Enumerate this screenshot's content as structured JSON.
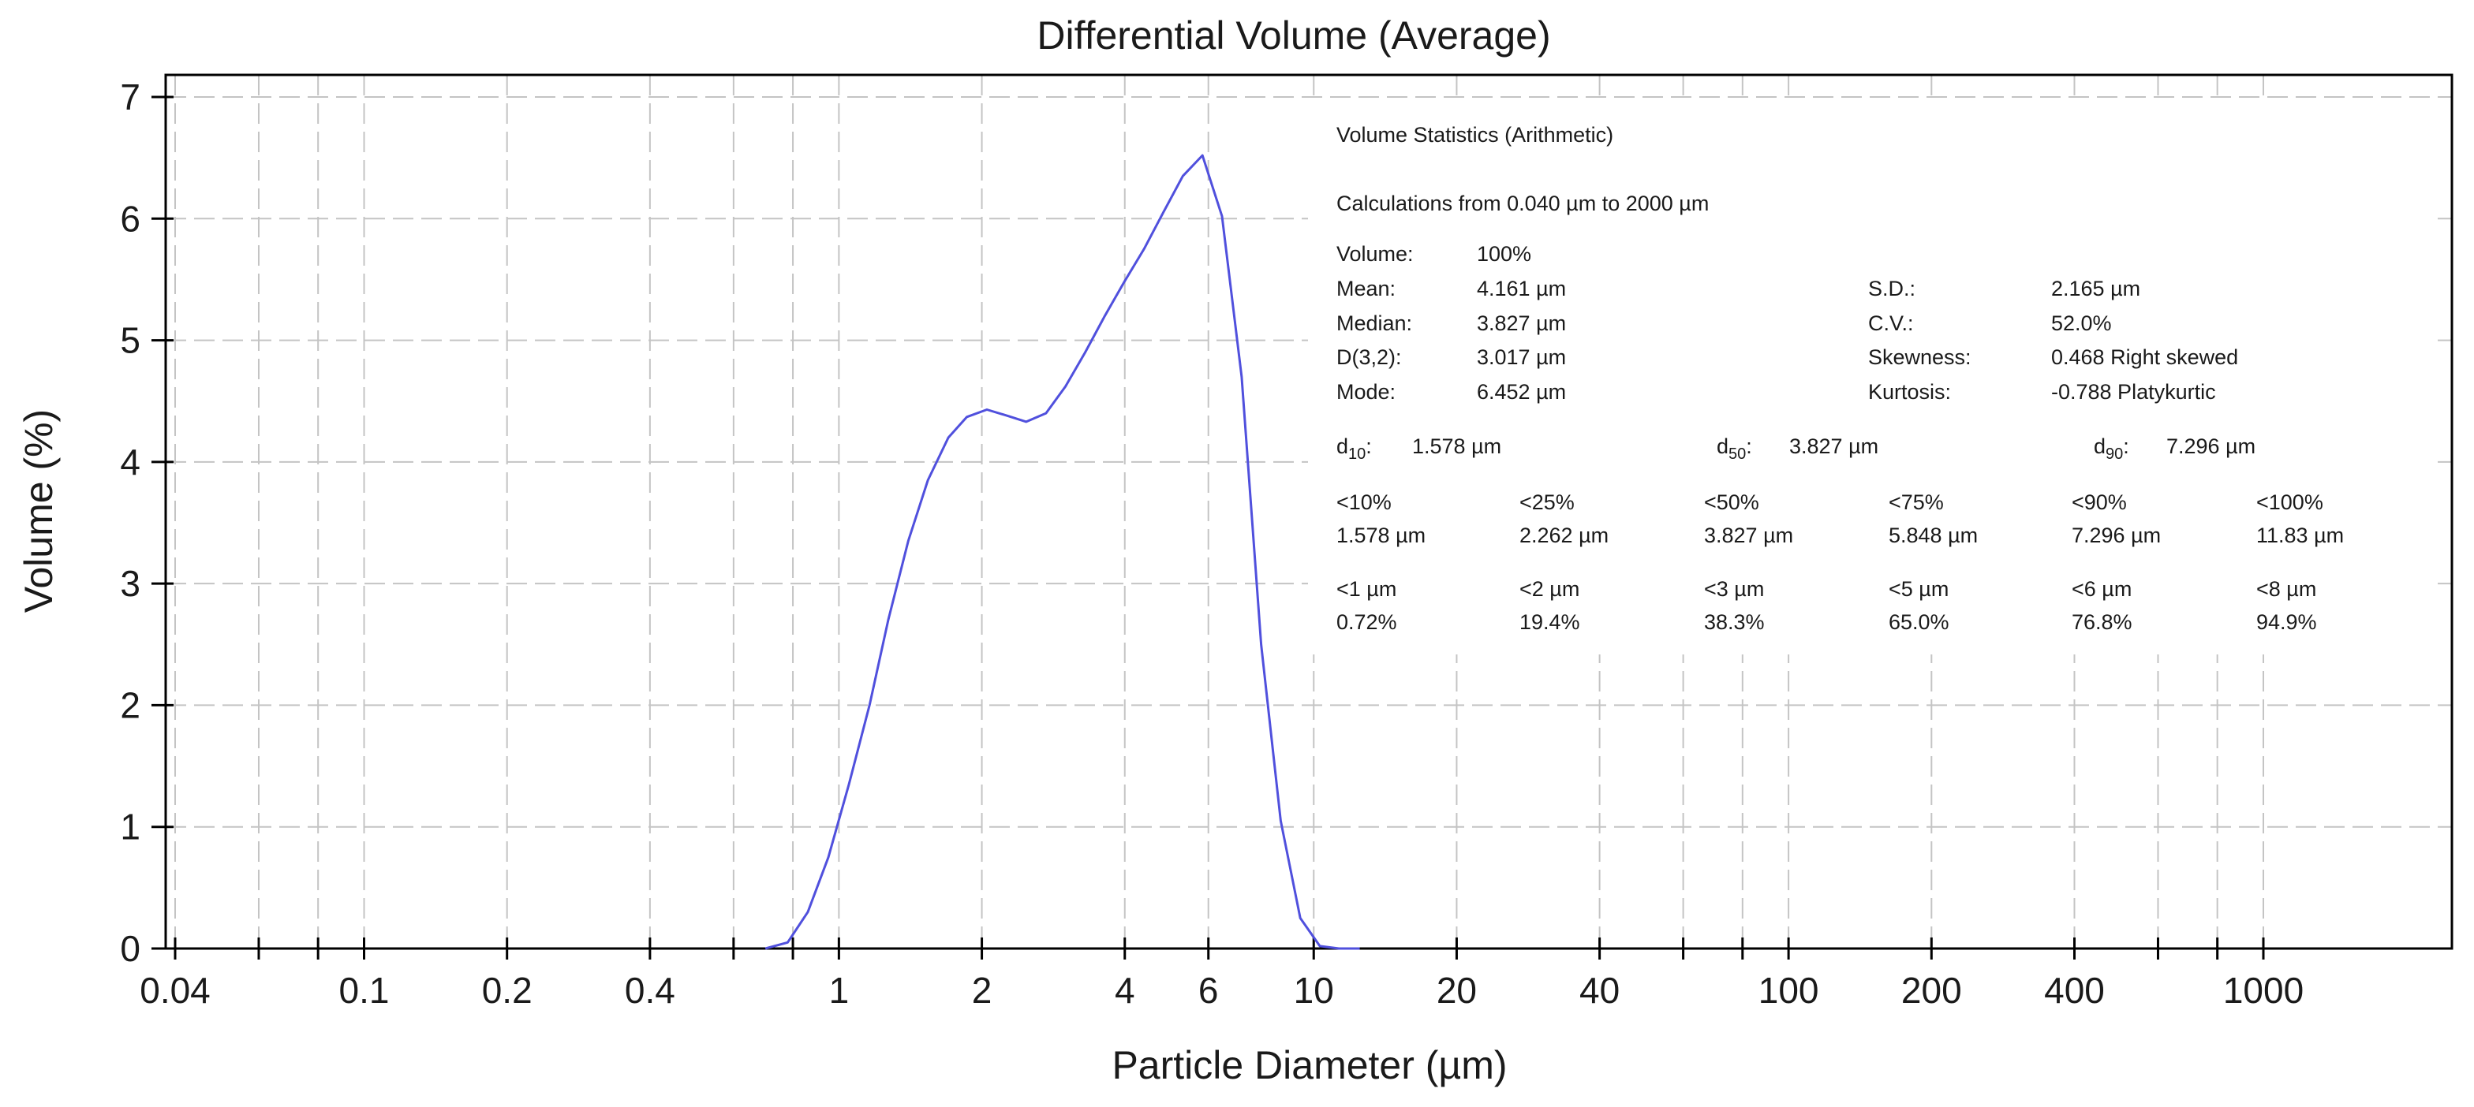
{
  "chart_data": {
    "type": "line",
    "title": "Differential Volume (Average)",
    "xlabel": "Particle Diameter (µm)",
    "ylabel": "Volume (%)",
    "xscale": "log",
    "xlim": [
      0.04,
      2000
    ],
    "ylim": [
      0,
      7
    ],
    "grid": true,
    "x_ticks": [
      0.04,
      0.1,
      0.2,
      0.4,
      1,
      2,
      4,
      6,
      10,
      20,
      40,
      100,
      200,
      400,
      1000
    ],
    "x_tick_labels": [
      "0.04",
      "0.1",
      "0.2",
      "0.4",
      "1",
      "2",
      "4",
      "6",
      "10",
      "20",
      "40",
      "100",
      "200",
      "400",
      "1000"
    ],
    "x_minor_ticks": [
      0.06,
      0.08,
      0.6,
      0.8,
      60,
      80,
      600,
      800
    ],
    "y_ticks": [
      0,
      1,
      2,
      3,
      4,
      5,
      6,
      7
    ],
    "y_tick_labels": [
      "0",
      "1",
      "2",
      "3",
      "4",
      "5",
      "6",
      "7"
    ],
    "series": [
      {
        "name": "Differential Volume (Average)",
        "color": "#5050dd",
        "x": [
          0.7,
          0.78,
          0.86,
          0.95,
          1.05,
          1.16,
          1.27,
          1.4,
          1.54,
          1.7,
          1.86,
          2.05,
          2.26,
          2.48,
          2.73,
          3.0,
          3.3,
          3.63,
          3.99,
          4.39,
          4.82,
          5.3,
          5.83,
          6.41,
          7.05,
          7.75,
          8.52,
          9.37,
          10.3,
          11.3,
          12.5
        ],
        "y": [
          0.0,
          0.05,
          0.3,
          0.75,
          1.35,
          2.0,
          2.7,
          3.35,
          3.85,
          4.2,
          4.37,
          4.43,
          4.38,
          4.33,
          4.4,
          4.62,
          4.9,
          5.2,
          5.48,
          5.75,
          6.05,
          6.35,
          6.52,
          6.02,
          4.7,
          2.5,
          1.05,
          0.25,
          0.02,
          0.0,
          0.0
        ]
      }
    ]
  },
  "stats": {
    "title": "Volume Statistics (Arithmetic)",
    "calc_range": "Calculations from 0.040 µm to 2000 µm",
    "left_rows": [
      {
        "label": "Volume:",
        "value": "100%"
      },
      {
        "label": "Mean:",
        "value": "4.161 µm"
      },
      {
        "label": "Median:",
        "value": "3.827 µm"
      },
      {
        "label": "D(3,2):",
        "value": "3.017 µm"
      },
      {
        "label": "Mode:",
        "value": "6.452 µm"
      }
    ],
    "right_rows": [
      {
        "label": "S.D.:",
        "value": "2.165 µm"
      },
      {
        "label": "C.V.:",
        "value": "52.0%"
      },
      {
        "label": "Skewness:",
        "value": "0.468 Right skewed"
      },
      {
        "label": "Kurtosis:",
        "value": "-0.788 Platykurtic"
      }
    ],
    "d_values": [
      {
        "label": "d",
        "sub": "10",
        "value": "1.578 µm"
      },
      {
        "label": "d",
        "sub": "50",
        "value": "3.827 µm"
      },
      {
        "label": "d",
        "sub": "90",
        "value": "7.296 µm"
      }
    ],
    "percent_under": [
      {
        "label": "<10%",
        "value": "1.578 µm"
      },
      {
        "label": "<25%",
        "value": "2.262 µm"
      },
      {
        "label": "<50%",
        "value": "3.827 µm"
      },
      {
        "label": "<75%",
        "value": "5.848 µm"
      },
      {
        "label": "<90%",
        "value": "7.296 µm"
      },
      {
        "label": "<100%",
        "value": "11.83 µm"
      }
    ],
    "size_under": [
      {
        "label": "<1 µm",
        "value": "0.72%"
      },
      {
        "label": "<2 µm",
        "value": "19.4%"
      },
      {
        "label": "<3 µm",
        "value": "38.3%"
      },
      {
        "label": "<5 µm",
        "value": "65.0%"
      },
      {
        "label": "<6 µm",
        "value": "76.8%"
      },
      {
        "label": "<8 µm",
        "value": "94.9%"
      }
    ]
  }
}
